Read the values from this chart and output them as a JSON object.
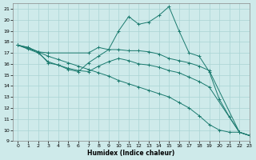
{
  "xlabel": "Humidex (Indice chaleur)",
  "xlim": [
    -0.5,
    23
  ],
  "ylim": [
    9,
    21.5
  ],
  "yticks": [
    9,
    10,
    11,
    12,
    13,
    14,
    15,
    16,
    17,
    18,
    19,
    20,
    21
  ],
  "xticks": [
    0,
    1,
    2,
    3,
    4,
    5,
    6,
    7,
    8,
    9,
    10,
    11,
    12,
    13,
    14,
    15,
    16,
    17,
    18,
    19,
    20,
    21,
    22,
    23
  ],
  "background_color": "#ceeaea",
  "line_color": "#1a7a6e",
  "grid_color": "#aad4d4",
  "lines": [
    {
      "x": [
        0,
        1,
        2,
        3,
        4,
        5,
        6,
        7,
        8,
        9,
        10,
        11,
        12,
        13,
        14,
        15,
        16,
        17,
        18,
        19,
        20,
        21,
        22,
        23
      ],
      "y": [
        17.7,
        17.5,
        17.1,
        16.1,
        15.9,
        15.5,
        15.3,
        16.1,
        16.7,
        17.3,
        19.0,
        20.3,
        19.6,
        19.8,
        20.4,
        21.2,
        19.0,
        17.0,
        16.7,
        15.3,
        12.8,
        11.2,
        9.8,
        9.5
      ]
    },
    {
      "x": [
        0,
        1,
        2,
        3,
        7,
        8,
        9,
        10,
        11,
        12,
        13,
        14,
        15,
        16,
        17,
        18,
        19,
        22,
        23
      ],
      "y": [
        17.7,
        17.5,
        17.1,
        17.0,
        17.0,
        17.5,
        17.3,
        17.3,
        17.2,
        17.2,
        17.1,
        16.9,
        16.5,
        16.3,
        16.1,
        15.8,
        15.4,
        9.8,
        9.5
      ]
    },
    {
      "x": [
        0,
        2,
        3,
        4,
        5,
        6,
        7,
        8,
        9,
        10,
        11,
        12,
        13,
        14,
        15,
        16,
        17,
        18,
        19,
        22,
        23
      ],
      "y": [
        17.7,
        17.0,
        16.2,
        15.9,
        15.6,
        15.4,
        15.3,
        15.8,
        16.2,
        16.5,
        16.3,
        16.0,
        15.9,
        15.7,
        15.4,
        15.2,
        14.8,
        14.4,
        13.9,
        9.8,
        9.5
      ]
    },
    {
      "x": [
        0,
        1,
        2,
        3,
        4,
        5,
        6,
        7,
        8,
        9,
        10,
        11,
        12,
        13,
        14,
        15,
        16,
        17,
        18,
        19,
        20,
        21,
        22,
        23
      ],
      "y": [
        17.7,
        17.4,
        17.1,
        16.7,
        16.4,
        16.1,
        15.8,
        15.5,
        15.2,
        14.9,
        14.5,
        14.2,
        13.9,
        13.6,
        13.3,
        13.0,
        12.5,
        12.0,
        11.3,
        10.5,
        10.0,
        9.8,
        9.8,
        9.5
      ]
    }
  ]
}
